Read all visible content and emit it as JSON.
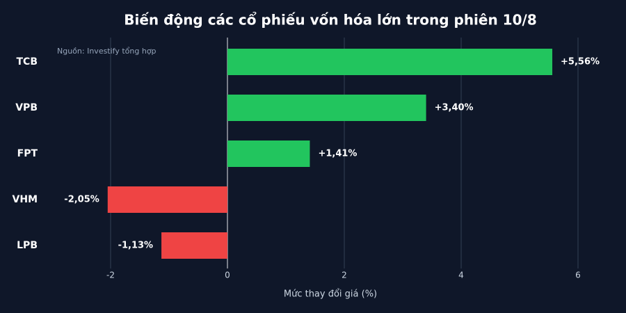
{
  "chart_data": {
    "type": "barh",
    "title": "Biến động các cổ phiếu vốn hóa lớn trong phiên 10/8",
    "source": "Nguồn: Investify tổng hợp",
    "xlabel": "Mức thay đổi giá (%)",
    "categories": [
      "TCB",
      "VPB",
      "FPT",
      "VHM",
      "LPB"
    ],
    "values": [
      5.56,
      3.4,
      1.41,
      -2.05,
      -1.13
    ],
    "value_labels": [
      "+5,56%",
      "+3,40%",
      "+1,41%",
      "-2,05%",
      "-1,13%"
    ],
    "colors": [
      "#22c55e",
      "#22c55e",
      "#22c55e",
      "#ef4444",
      "#ef4444"
    ],
    "xlim": [
      -3.1,
      6.5
    ],
    "xticks": [
      -2,
      0,
      2,
      4,
      6
    ],
    "grid": true
  }
}
